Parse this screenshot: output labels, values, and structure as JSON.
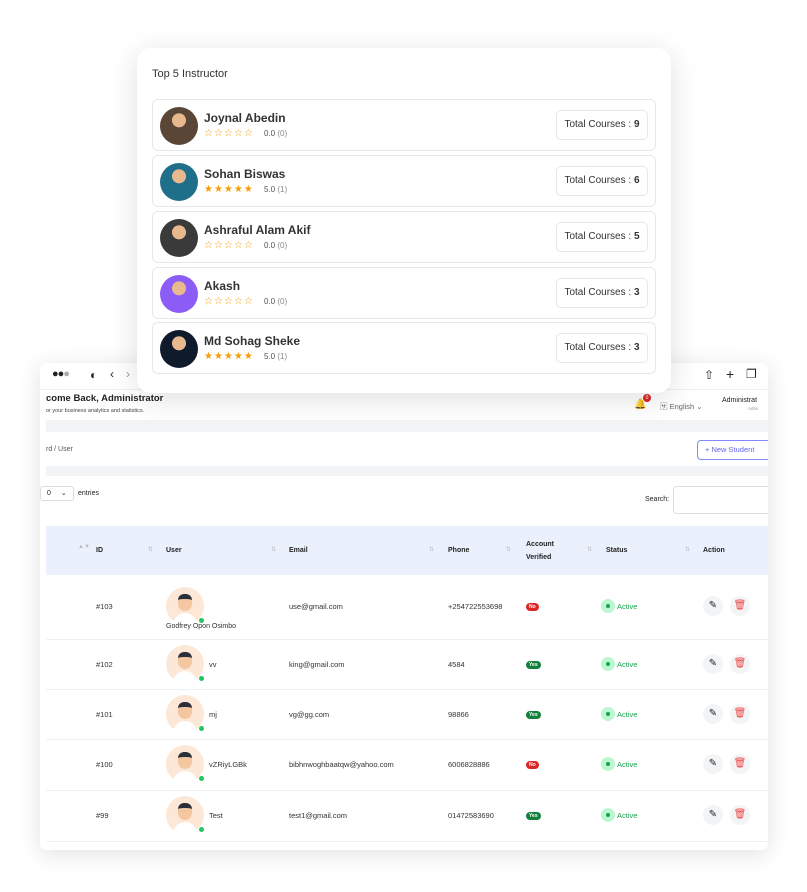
{
  "instructor_card": {
    "title": "Top 5 Instructor",
    "total_label": "Total Courses :",
    "instructors": [
      {
        "name": "Joynal Abedin",
        "stars": "☆☆☆☆☆",
        "rating": "0.0",
        "count": "(0)",
        "courses": "9",
        "avatar_color": "#5a4636"
      },
      {
        "name": "Sohan Biswas",
        "stars": "★★★★★",
        "rating": "5.0",
        "count": "(1)",
        "courses": "6",
        "avatar_color": "#1f6f8b"
      },
      {
        "name": "Ashraful Alam Akif",
        "stars": "☆☆☆☆☆",
        "rating": "0.0",
        "count": "(0)",
        "courses": "5",
        "avatar_color": "#3a3a3a"
      },
      {
        "name": "Akash",
        "stars": "☆☆☆☆☆",
        "rating": "0.0",
        "count": "(0)",
        "courses": "3",
        "avatar_color": "#8b5cf6"
      },
      {
        "name": "Md Sohag Sheke",
        "stars": "★★★★★",
        "rating": "5.0",
        "count": "(1)",
        "courses": "3",
        "avatar_color": "#0f1b2b"
      }
    ]
  },
  "header": {
    "welcome": "come Back, Administrator",
    "subtitle": "or your business analytics and statistics.",
    "notif_count": "0",
    "language": "English",
    "user_name": "Administrat",
    "user_role": "Admi"
  },
  "breadcrumb": "rd  /  User",
  "new_student": "+ New Student",
  "entries": {
    "value": "0",
    "label": "entries"
  },
  "search_label": "Search:",
  "table": {
    "headers": {
      "id": "ID",
      "user": "User",
      "email": "Email",
      "phone": "Phone",
      "verified1": "Account",
      "verified2": "Verified",
      "status": "Status",
      "action": "Action"
    },
    "rows": [
      {
        "id": "#103",
        "user": "Godfrey Opon Osimbo",
        "email": "use@gmail.com",
        "phone": "+254722553698",
        "verified": "No",
        "status": "Active"
      },
      {
        "id": "#102",
        "user": "vv",
        "email": "king@gmail.com",
        "phone": "4584",
        "verified": "Yes",
        "status": "Active"
      },
      {
        "id": "#101",
        "user": "mj",
        "email": "vg@gg.com",
        "phone": "98866",
        "verified": "Yes",
        "status": "Active"
      },
      {
        "id": "#100",
        "user": "vZRiyLGBk",
        "email": "bibhnwoghbaatqw@yahoo.com",
        "phone": "6006828886",
        "verified": "No",
        "status": "Active"
      },
      {
        "id": "#99",
        "user": "Test",
        "email": "test1@gmail.com",
        "phone": "01472583690",
        "verified": "Yes",
        "status": "Active"
      }
    ]
  }
}
